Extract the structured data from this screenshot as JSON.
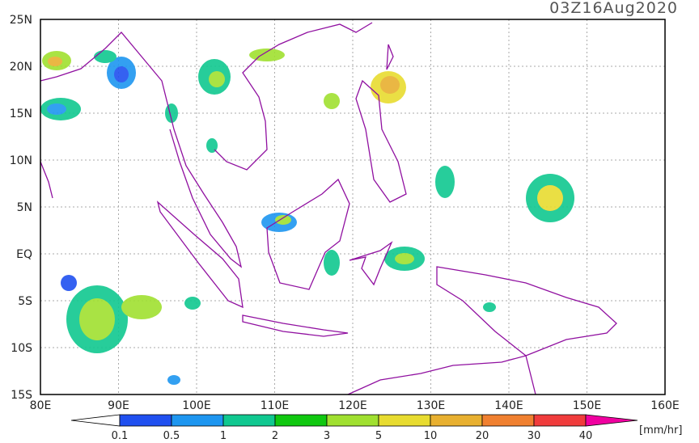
{
  "header": {
    "title": "03Z16Aug2020"
  },
  "map": {
    "x_labels": [
      "80E",
      "90E",
      "100E",
      "110E",
      "120E",
      "130E",
      "140E",
      "150E",
      "160E"
    ],
    "y_labels": [
      "25N",
      "20N",
      "15N",
      "10N",
      "5N",
      "EQ",
      "5S",
      "10S",
      "15S"
    ]
  },
  "colorbar": {
    "labels": [
      "0.1",
      "0.5",
      "1",
      "2",
      "3",
      "5",
      "10",
      "20",
      "30",
      "40"
    ],
    "colors": [
      "#ffffff",
      "#2050f0",
      "#1e96f0",
      "#10c890",
      "#10c810",
      "#a0e030",
      "#e8dc30",
      "#e8b030",
      "#f08030",
      "#f03c3c",
      "#f000a0"
    ],
    "unit": "[mm/hr]"
  }
}
